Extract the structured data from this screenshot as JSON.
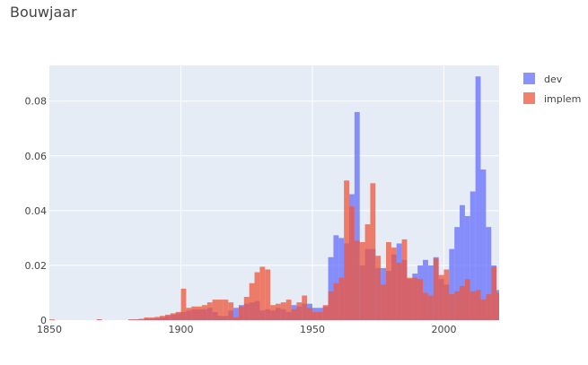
{
  "chart_data": {
    "type": "histogram-overlay",
    "title": "Bouwjaar",
    "xlabel": "",
    "ylabel": "",
    "xlim": [
      1850,
      2021
    ],
    "ylim": [
      0,
      0.093
    ],
    "bin_start": 1850,
    "bin_width": 2,
    "x_ticks": [
      1850,
      1900,
      1950,
      2000
    ],
    "y_ticks": [
      0,
      0.02,
      0.04,
      0.06,
      0.08
    ],
    "y_tick_labels": [
      "0",
      "0.02",
      "0.04",
      "0.06",
      "0.08"
    ],
    "legend_position": "top-right",
    "grid": true,
    "colors": {
      "plot_bg": "#E5ECF6",
      "grid": "#ffffff",
      "dev": "#636EFA",
      "implem": "#EF553B"
    },
    "opacity": 0.75,
    "series": [
      {
        "name": "dev",
        "values": [
          0,
          0,
          0,
          0,
          0,
          0,
          0,
          0,
          0,
          0.0002,
          0,
          0,
          0,
          0,
          0,
          0.0002,
          0.0003,
          0.0003,
          0.0005,
          0.0005,
          0.0007,
          0.001,
          0.0015,
          0.002,
          0.0025,
          0.003,
          0.0035,
          0.004,
          0.004,
          0.004,
          0.0045,
          0.003,
          0.0015,
          0.0015,
          0.0035,
          0.0045,
          0.0055,
          0.006,
          0.0065,
          0.007,
          0.0035,
          0.004,
          0.0035,
          0.0045,
          0.004,
          0.003,
          0.0055,
          0.005,
          0.006,
          0.006,
          0.0045,
          0.0045,
          0.005,
          0.023,
          0.031,
          0.03,
          0.028,
          0.046,
          0.076,
          0.02,
          0.026,
          0.026,
          0.019,
          0.019,
          0.018,
          0.024,
          0.028,
          0.022,
          0.015,
          0.017,
          0.02,
          0.022,
          0.02,
          0.023,
          0.015,
          0.013,
          0.026,
          0.034,
          0.042,
          0.038,
          0.047,
          0.089,
          0.055,
          0.034,
          0.02,
          0.011,
          0
        ]
      },
      {
        "name": "implem",
        "values": [
          0.0003,
          0,
          0,
          0,
          0,
          0,
          0,
          0,
          0,
          0.0003,
          0,
          0,
          0,
          0,
          0,
          0.0003,
          0.0003,
          0.0005,
          0.001,
          0.001,
          0.0012,
          0.0016,
          0.002,
          0.0025,
          0.003,
          0.0115,
          0.0045,
          0.005,
          0.005,
          0.0055,
          0.0065,
          0.0075,
          0.0075,
          0.0075,
          0.0065,
          0.001,
          0.005,
          0.0085,
          0.0135,
          0.0175,
          0.0195,
          0.0185,
          0.0055,
          0.006,
          0.0065,
          0.0075,
          0.004,
          0.0065,
          0.009,
          0.0045,
          0.003,
          0.003,
          0.0055,
          0.0105,
          0.0135,
          0.0155,
          0.051,
          0.0415,
          0.029,
          0.0285,
          0.035,
          0.05,
          0.0235,
          0.013,
          0.0285,
          0.0265,
          0.021,
          0.0295,
          0.0155,
          0.0155,
          0.015,
          0.01,
          0.009,
          0.0225,
          0.0165,
          0.0185,
          0.0095,
          0.0105,
          0.0125,
          0.015,
          0.0105,
          0.011,
          0.0075,
          0.0095,
          0.0195,
          0.01,
          0.008,
          0.0085,
          0.01,
          0.0095,
          0.0025
        ]
      }
    ]
  }
}
